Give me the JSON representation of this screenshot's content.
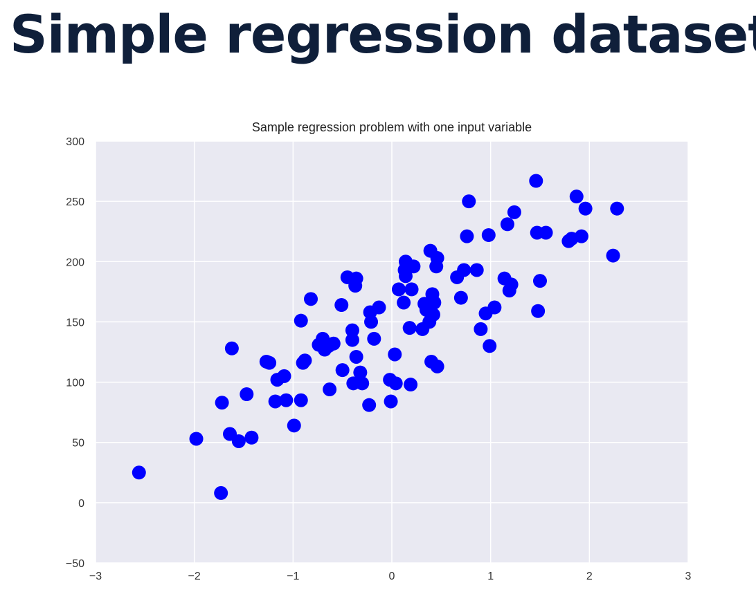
{
  "slide": {
    "title": "Simple regression dataset"
  },
  "chart_data": {
    "type": "scatter",
    "title": "Sample regression problem with one input variable",
    "xlabel": "",
    "ylabel": "",
    "xlim": [
      -3,
      3
    ],
    "ylim": [
      -50,
      300
    ],
    "x_ticks": [
      -3,
      -2,
      -1,
      0,
      1,
      2,
      3
    ],
    "y_ticks": [
      -50,
      0,
      50,
      100,
      150,
      200,
      250,
      300
    ],
    "grid": true,
    "legend": "none",
    "colors": {
      "background": "#e9e9f2",
      "grid": "#ffffff",
      "marker": "#0000ff"
    },
    "series": [
      {
        "points": [
          [
            -2.56,
            25
          ],
          [
            -1.98,
            53
          ],
          [
            -1.73,
            8
          ],
          [
            -1.72,
            83
          ],
          [
            -1.64,
            57
          ],
          [
            -1.62,
            128
          ],
          [
            -1.55,
            51
          ],
          [
            -1.47,
            90
          ],
          [
            -1.42,
            54
          ],
          [
            -1.27,
            117
          ],
          [
            -1.24,
            116
          ],
          [
            -1.18,
            84
          ],
          [
            -1.16,
            102
          ],
          [
            -1.09,
            105
          ],
          [
            -1.07,
            85
          ],
          [
            -0.99,
            64
          ],
          [
            -0.92,
            151
          ],
          [
            -0.92,
            85
          ],
          [
            -0.9,
            116
          ],
          [
            -0.88,
            118
          ],
          [
            -0.82,
            169
          ],
          [
            -0.74,
            131
          ],
          [
            -0.7,
            136
          ],
          [
            -0.68,
            127
          ],
          [
            -0.64,
            130
          ],
          [
            -0.63,
            94
          ],
          [
            -0.59,
            132
          ],
          [
            -0.51,
            164
          ],
          [
            -0.5,
            110
          ],
          [
            -0.45,
            187
          ],
          [
            -0.4,
            143
          ],
          [
            -0.4,
            135
          ],
          [
            -0.39,
            99
          ],
          [
            -0.37,
            180
          ],
          [
            -0.36,
            186
          ],
          [
            -0.36,
            121
          ],
          [
            -0.32,
            108
          ],
          [
            -0.3,
            99
          ],
          [
            -0.23,
            81
          ],
          [
            -0.22,
            158
          ],
          [
            -0.21,
            150
          ],
          [
            -0.18,
            136
          ],
          [
            -0.13,
            162
          ],
          [
            -0.02,
            102
          ],
          [
            -0.01,
            84
          ],
          [
            0.03,
            123
          ],
          [
            0.04,
            99
          ],
          [
            0.07,
            177
          ],
          [
            0.12,
            166
          ],
          [
            0.13,
            193
          ],
          [
            0.14,
            188
          ],
          [
            0.14,
            200
          ],
          [
            0.18,
            145
          ],
          [
            0.19,
            98
          ],
          [
            0.2,
            177
          ],
          [
            0.22,
            196
          ],
          [
            0.31,
            144
          ],
          [
            0.33,
            165
          ],
          [
            0.35,
            160
          ],
          [
            0.37,
            163
          ],
          [
            0.38,
            150
          ],
          [
            0.39,
            209
          ],
          [
            0.4,
            117
          ],
          [
            0.41,
            173
          ],
          [
            0.42,
            156
          ],
          [
            0.43,
            166
          ],
          [
            0.45,
            196
          ],
          [
            0.46,
            113
          ],
          [
            0.46,
            203
          ],
          [
            0.66,
            187
          ],
          [
            0.7,
            170
          ],
          [
            0.73,
            193
          ],
          [
            0.76,
            221
          ],
          [
            0.78,
            250
          ],
          [
            0.86,
            193
          ],
          [
            0.9,
            144
          ],
          [
            0.95,
            157
          ],
          [
            0.98,
            222
          ],
          [
            0.99,
            130
          ],
          [
            1.04,
            162
          ],
          [
            1.14,
            186
          ],
          [
            1.17,
            231
          ],
          [
            1.19,
            176
          ],
          [
            1.21,
            181
          ],
          [
            1.24,
            241
          ],
          [
            1.46,
            267
          ],
          [
            1.47,
            224
          ],
          [
            1.48,
            159
          ],
          [
            1.5,
            184
          ],
          [
            1.56,
            224
          ],
          [
            1.79,
            217
          ],
          [
            1.82,
            219
          ],
          [
            1.87,
            254
          ],
          [
            1.92,
            221
          ],
          [
            1.96,
            244
          ],
          [
            2.24,
            205
          ],
          [
            2.28,
            244
          ]
        ]
      }
    ]
  }
}
